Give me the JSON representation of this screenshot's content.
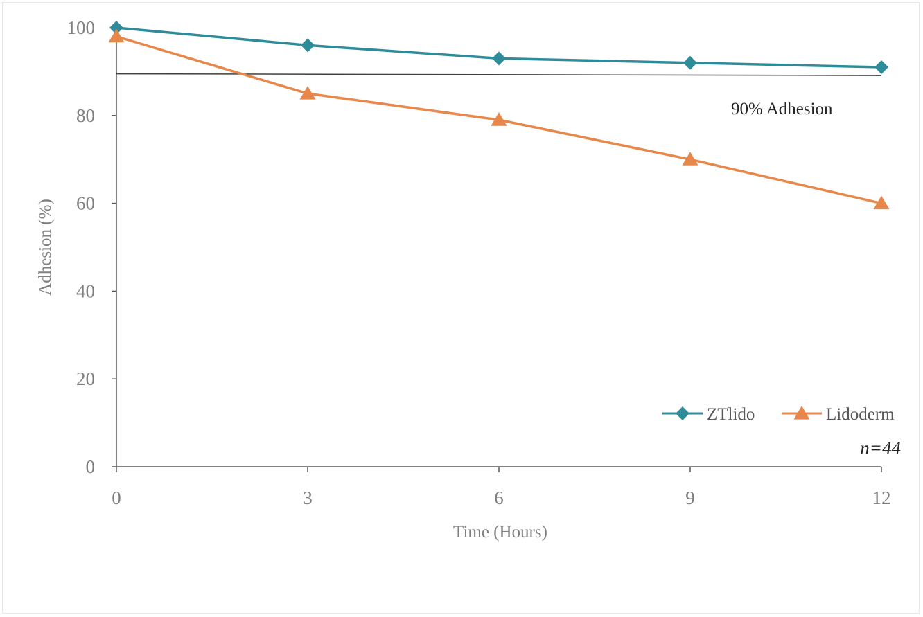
{
  "chart_data": {
    "type": "line",
    "title": "",
    "xlabel": "Time (Hours)",
    "ylabel": "Adhesion (%)",
    "x": [
      0,
      3,
      6,
      9,
      12
    ],
    "x_tick_labels": [
      "0",
      "3",
      "6",
      "9",
      "12"
    ],
    "y_tick_labels": [
      "0",
      "20",
      "40",
      "60",
      "80",
      "100"
    ],
    "xlim": [
      0,
      12
    ],
    "ylim": [
      0,
      100
    ],
    "grid": false,
    "legend_position": "bottom-right",
    "series": [
      {
        "name": "ZTlido",
        "marker": "diamond",
        "color": "#2E8B9A",
        "values": [
          100,
          96,
          93,
          92,
          91
        ]
      },
      {
        "name": "Lidoderm",
        "marker": "triangle",
        "color": "#E8874A",
        "values": [
          98,
          85,
          79,
          70,
          60
        ]
      }
    ],
    "reference_line": {
      "label": "90% Adhesion",
      "y_start": 89.5,
      "y_end": 89.1,
      "color": "#404040"
    },
    "annotations": [
      {
        "text": "n=44"
      }
    ]
  }
}
